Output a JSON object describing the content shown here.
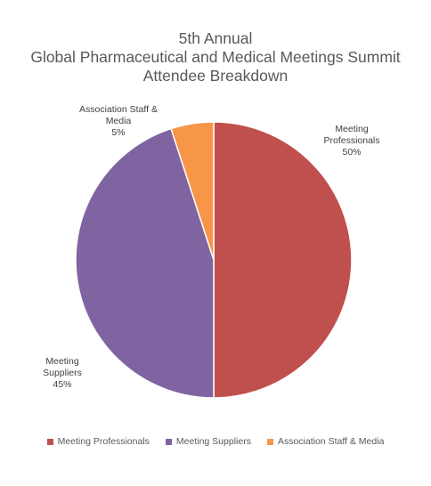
{
  "chart_data": {
    "type": "pie",
    "title_lines": [
      "5th Annual",
      "Global Pharmaceutical and Medical Meetings Summit",
      "Attendee Breakdown"
    ],
    "slices": [
      {
        "name": "Meeting Professionals",
        "label_lines": [
          "Meeting",
          "Professionals",
          "50%"
        ],
        "value": 50,
        "color": "#C0504D"
      },
      {
        "name": "Meeting Suppliers",
        "label_lines": [
          "Meeting",
          "Suppliers",
          "45%"
        ],
        "value": 45,
        "color": "#8064A2"
      },
      {
        "name": "Association Staff & Media",
        "label_lines": [
          "Association Staff &",
          "Media",
          "5%"
        ],
        "value": 5,
        "color": "#F79646"
      }
    ],
    "legend": {
      "position": "bottom",
      "items": [
        "Meeting Professionals",
        "Meeting Suppliers",
        "Association Staff & Media"
      ]
    }
  }
}
